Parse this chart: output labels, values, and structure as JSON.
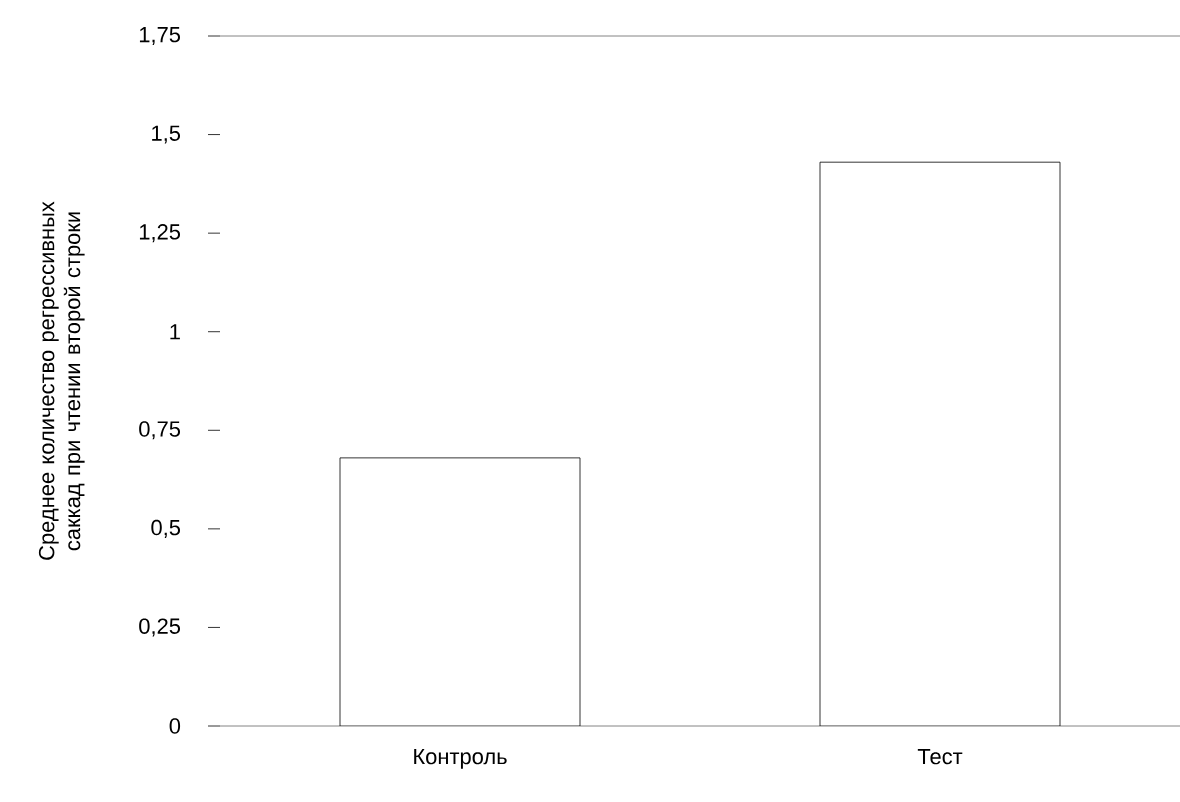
{
  "chart_data": {
    "type": "bar",
    "ylabel": "Среднее количество регрессивных саккад при чтении второй строки",
    "categories": [
      "Контроль",
      "Тест"
    ],
    "values": [
      0.68,
      1.43
    ],
    "color": "#ffffff",
    "ylim": [
      0,
      1.75
    ],
    "yticks": [
      0,
      {
        "value": 0.25,
        "label": "0,25"
      },
      {
        "value": 0.5,
        "label": "0,5"
      },
      {
        "value": 0.75,
        "label": "0,75"
      },
      1,
      {
        "value": 1.25,
        "label": "1,25"
      },
      {
        "value": 1.5,
        "label": "1,5"
      },
      {
        "value": 1.75,
        "label": "1,75"
      }
    ],
    "grid": false
  }
}
